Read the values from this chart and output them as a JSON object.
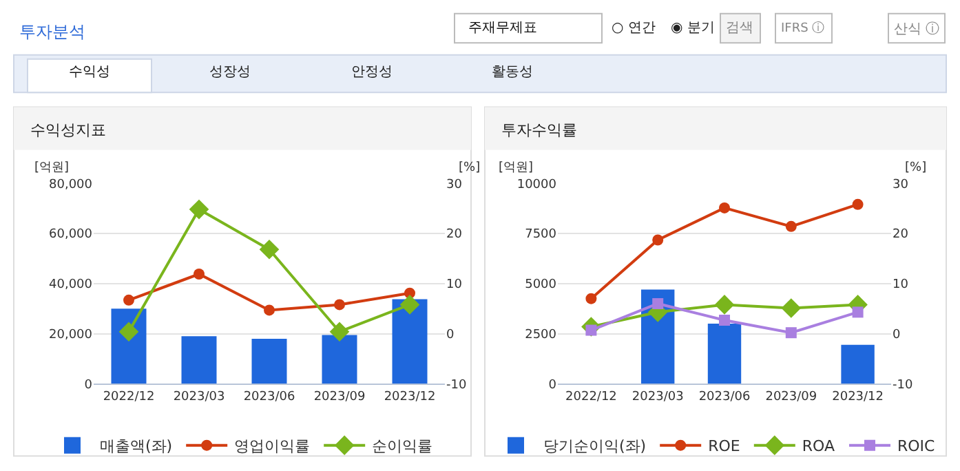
{
  "chart_data": [
    {
      "type": "bar",
      "title": "수익성지표",
      "ylabel": "[억원]",
      "y2label": "[%]",
      "annotations": [
        "투자분석",
        "주재무제표",
        "○ 연간",
        "◉ 분기",
        "검색",
        "IFRS ⓘ",
        "산식 ⓘ",
        "수익성",
        "성장성",
        "안정성",
        "활동성"
      ],
      "categories": [
        "2022/12",
        "2023/03",
        "2023/06",
        "2023/09",
        "2023/12"
      ],
      "series": [
        {
          "name": "매출액(좌)",
          "color": "#1f67dc",
          "values": [
            30000,
            19000,
            18000,
            19500,
            33800
          ]
        },
        {
          "name": "영업이익률",
          "type": "line",
          "axis": "y2",
          "marker": "circle",
          "color": "#d23c10",
          "values": [
            6.7,
            11.9,
            4.7,
            5.8,
            8.1
          ]
        },
        {
          "name": "순이익률",
          "type": "line",
          "axis": "y2",
          "marker": "diamond",
          "color": "#7ab51d",
          "values": [
            0.4,
            24.8,
            16.8,
            0.4,
            5.8
          ]
        }
      ],
      "ylim": [
        0,
        80000
      ],
      "yticks": [
        0,
        {
          "value": 20000,
          "label": "20,000"
        },
        {
          "value": 40000,
          "label": "40,000"
        },
        {
          "value": 60000,
          "label": "60,000"
        },
        {
          "value": 80000,
          "label": "80,000"
        }
      ],
      "y2lim": [
        -10,
        30
      ],
      "y2ticks": [
        -10,
        0,
        10,
        20,
        30
      ],
      "grid": "y",
      "legend": "bottom"
    },
    {
      "type": "bar",
      "title": "투자수익률",
      "ylabel": "[억원]",
      "y2label": "[%]",
      "categories": [
        "2022/12",
        "2023/03",
        "2023/06",
        "2023/09",
        "2023/12"
      ],
      "series": [
        {
          "name": "당기순이익(좌)",
          "color": "#1f67dc",
          "values": [
            null,
            4700,
            3000,
            null,
            1950
          ]
        },
        {
          "name": "ROE",
          "type": "line",
          "axis": "y2",
          "marker": "circle",
          "color": "#d23c10",
          "values": [
            7.0,
            18.7,
            25.1,
            21.4,
            25.8
          ]
        },
        {
          "name": "ROA",
          "type": "line",
          "axis": "y2",
          "marker": "diamond",
          "color": "#7ab51d",
          "values": [
            1.4,
            4.3,
            5.8,
            5.1,
            5.8
          ]
        },
        {
          "name": "ROIC",
          "type": "line",
          "axis": "y2",
          "marker": "square",
          "color": "#a97fe0",
          "values": [
            0.7,
            6.0,
            2.7,
            0.2,
            4.3
          ]
        }
      ],
      "ylim": [
        0,
        10000
      ],
      "yticks": [
        0,
        2500,
        5000,
        7500,
        10000
      ],
      "y2lim": [
        -10,
        30
      ],
      "y2ticks": [
        -10,
        0,
        10,
        20,
        30
      ],
      "grid": "y",
      "legend": "bottom"
    }
  ]
}
